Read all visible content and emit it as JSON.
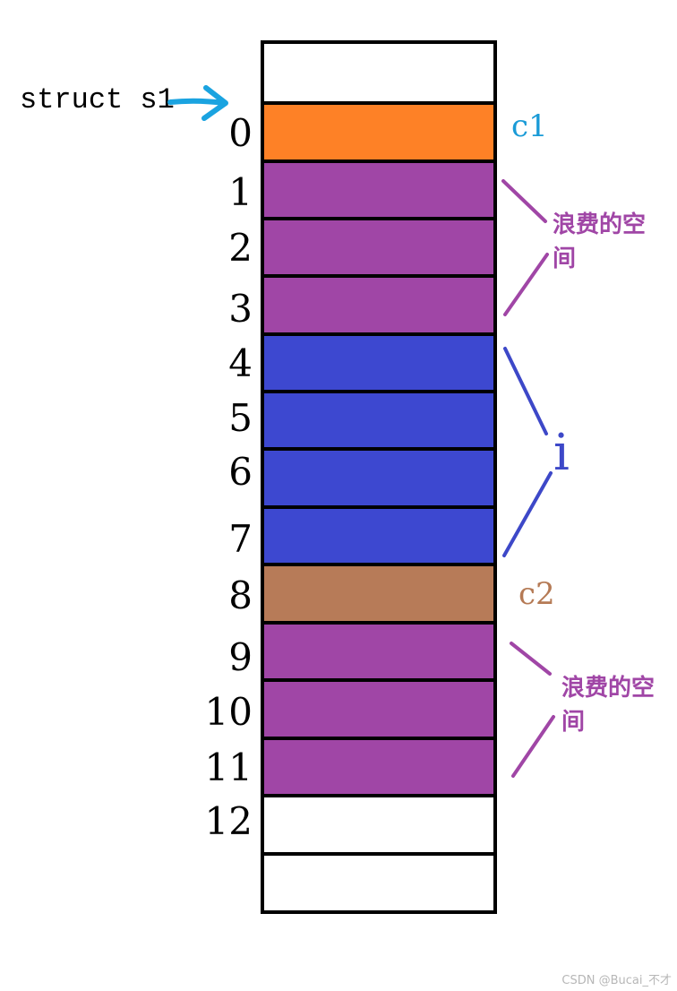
{
  "struct_label": "struct s1",
  "indices": [
    "0",
    "1",
    "2",
    "3",
    "4",
    "5",
    "6",
    "7",
    "8",
    "9",
    "10",
    "11",
    "12"
  ],
  "cells": [
    {
      "name": "cell-empty-top",
      "color": "#ffffff"
    },
    {
      "name": "cell-0",
      "color": "#fe8126"
    },
    {
      "name": "cell-1",
      "color": "#a046a6"
    },
    {
      "name": "cell-2",
      "color": "#a046a6"
    },
    {
      "name": "cell-3",
      "color": "#a046a6"
    },
    {
      "name": "cell-4",
      "color": "#3d48d0"
    },
    {
      "name": "cell-5",
      "color": "#3d48d0"
    },
    {
      "name": "cell-6",
      "color": "#3d48d0"
    },
    {
      "name": "cell-7",
      "color": "#3d48d0"
    },
    {
      "name": "cell-8",
      "color": "#b77b58"
    },
    {
      "name": "cell-9",
      "color": "#a046a6"
    },
    {
      "name": "cell-10",
      "color": "#a046a6"
    },
    {
      "name": "cell-11",
      "color": "#a046a6"
    },
    {
      "name": "cell-12",
      "color": "#ffffff"
    },
    {
      "name": "cell-empty-bottom",
      "color": "#ffffff"
    }
  ],
  "members": {
    "c1": "c1",
    "i": "i",
    "c2": "c2"
  },
  "wasted_space": {
    "first": "浪费的空间",
    "second": "浪费的空间"
  },
  "colors": {
    "arrow": "#1aa3e0",
    "c1": "#1a9bd7",
    "i": "#3d48c8",
    "c2": "#b57a55",
    "waste": "#a046a6"
  },
  "watermark": "CSDN @Bucai_不才"
}
